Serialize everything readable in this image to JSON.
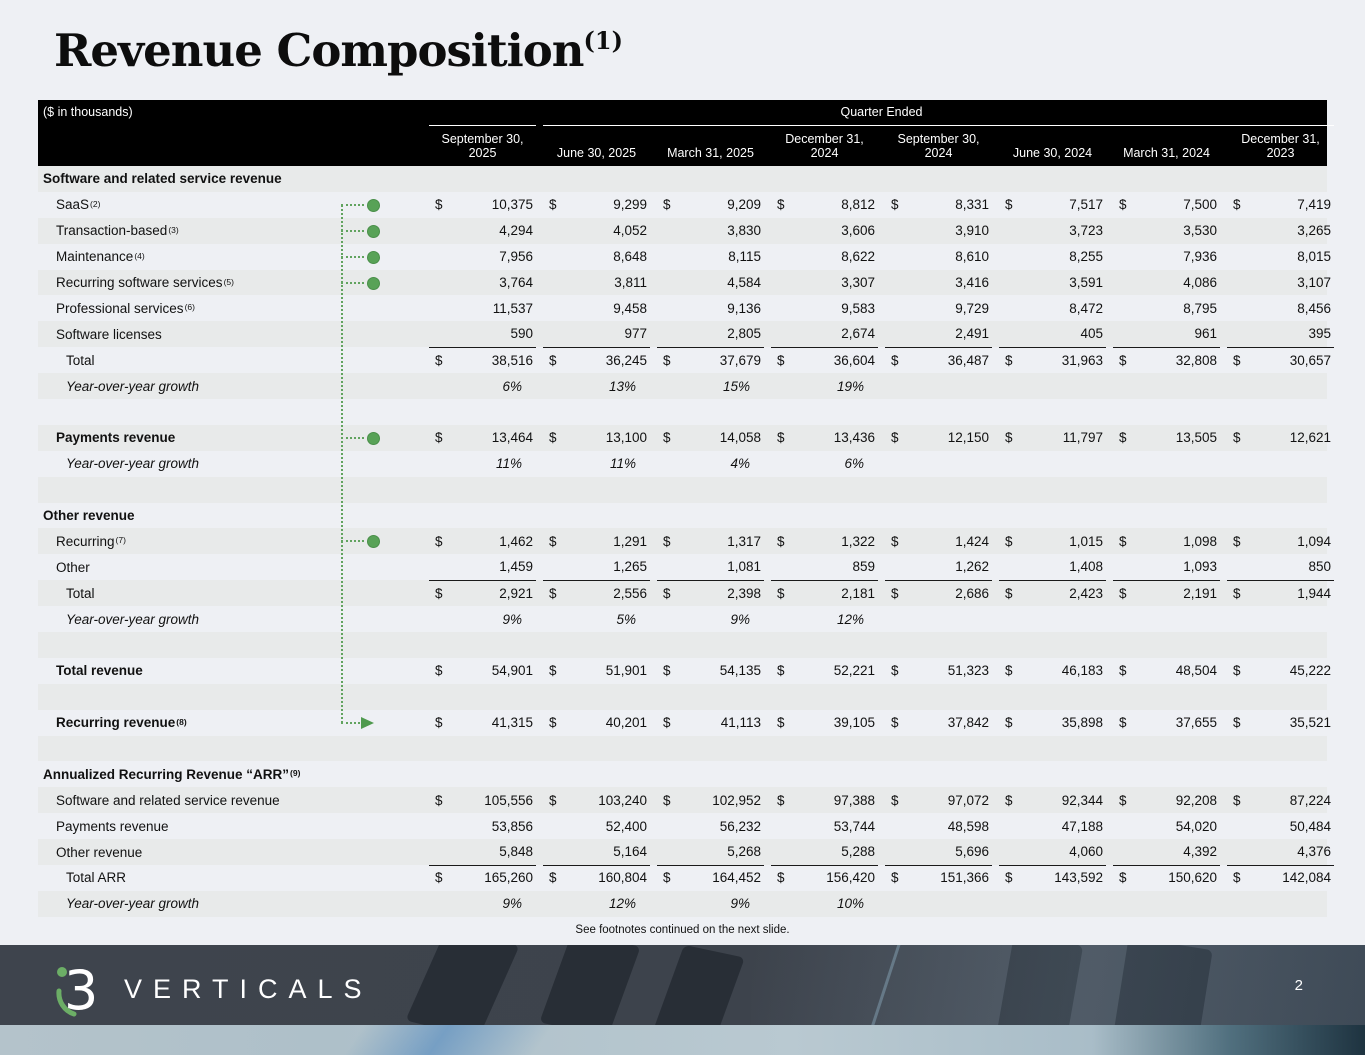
{
  "slide": {
    "title": "Revenue Composition",
    "title_sup": "(1)",
    "footnote": "See footnotes continued on the next slide.",
    "page_number": "2",
    "logo_wordmark": "VERTICALS",
    "logo_mark": "i3"
  },
  "colors": {
    "accent_green": "#58a257",
    "header_bg": "#000000",
    "row_stripe": "#e8eaea",
    "slide_bg": "#eef0f4",
    "footer_band": "#3e444d"
  },
  "table": {
    "units_note": "($ in thousands)",
    "quarter_ended_label": "Quarter Ended",
    "columns": [
      "September 30, 2025",
      "June 30, 2025",
      "March 31, 2025",
      "December 31, 2024",
      "September 30, 2024",
      "June 30, 2024",
      "March 31, 2024",
      "December 31, 2023"
    ],
    "rows": [
      {
        "t": "section",
        "label": "Software and related service revenue",
        "shade": true
      },
      {
        "t": "data",
        "label": "SaaS",
        "sup": "(2)",
        "dollar": true,
        "conn": "dot",
        "values": [
          "10,375",
          "9,299",
          "9,209",
          "8,812",
          "8,331",
          "7,517",
          "7,500",
          "7,419"
        ]
      },
      {
        "t": "data",
        "label": "Transaction-based",
        "sup": "(3)",
        "shade": true,
        "conn": "dot",
        "values": [
          "4,294",
          "4,052",
          "3,830",
          "3,606",
          "3,910",
          "3,723",
          "3,530",
          "3,265"
        ]
      },
      {
        "t": "data",
        "label": "Maintenance",
        "sup": "(4)",
        "conn": "dot",
        "values": [
          "7,956",
          "8,648",
          "8,115",
          "8,622",
          "8,610",
          "8,255",
          "7,936",
          "8,015"
        ]
      },
      {
        "t": "data",
        "label": "Recurring software services",
        "sup": "(5)",
        "shade": true,
        "conn": "dot",
        "values": [
          "3,764",
          "3,811",
          "4,584",
          "3,307",
          "3,416",
          "3,591",
          "4,086",
          "3,107"
        ]
      },
      {
        "t": "data",
        "label": "Professional services",
        "sup": "(6)",
        "values": [
          "11,537",
          "9,458",
          "9,136",
          "9,583",
          "9,729",
          "8,472",
          "8,795",
          "8,456"
        ]
      },
      {
        "t": "data",
        "label": "Software licenses",
        "shade": true,
        "ul": true,
        "values": [
          "590",
          "977",
          "2,805",
          "2,674",
          "2,491",
          "405",
          "961",
          "395"
        ]
      },
      {
        "t": "total",
        "label": "Total",
        "dollar": true,
        "values": [
          "38,516",
          "36,245",
          "37,679",
          "36,604",
          "36,487",
          "31,963",
          "32,808",
          "30,657"
        ]
      },
      {
        "t": "growth",
        "label": "Year-over-year growth",
        "shade": true,
        "values": [
          "6%",
          "13%",
          "15%",
          "19%",
          "",
          "",
          "",
          ""
        ]
      },
      {
        "t": "blank"
      },
      {
        "t": "data",
        "label": "Payments revenue",
        "bold": true,
        "shade": true,
        "dollar": true,
        "conn": "dot",
        "values": [
          "13,464",
          "13,100",
          "14,058",
          "13,436",
          "12,150",
          "11,797",
          "13,505",
          "12,621"
        ]
      },
      {
        "t": "growth",
        "label": "Year-over-year growth",
        "values": [
          "11%",
          "11%",
          "4%",
          "6%",
          "",
          "",
          "",
          ""
        ]
      },
      {
        "t": "blank",
        "shade": true
      },
      {
        "t": "section",
        "label": "Other revenue"
      },
      {
        "t": "data",
        "label": "Recurring",
        "sup": "(7)",
        "shade": true,
        "dollar": true,
        "conn": "dot",
        "values": [
          "1,462",
          "1,291",
          "1,317",
          "1,322",
          "1,424",
          "1,015",
          "1,098",
          "1,094"
        ]
      },
      {
        "t": "data",
        "label": "Other",
        "ul": true,
        "values": [
          "1,459",
          "1,265",
          "1,081",
          "859",
          "1,262",
          "1,408",
          "1,093",
          "850"
        ]
      },
      {
        "t": "total",
        "label": "Total",
        "shade": true,
        "dollar": true,
        "values": [
          "2,921",
          "2,556",
          "2,398",
          "2,181",
          "2,686",
          "2,423",
          "2,191",
          "1,944"
        ]
      },
      {
        "t": "growth",
        "label": "Year-over-year growth",
        "values": [
          "9%",
          "5%",
          "9%",
          "12%",
          "",
          "",
          "",
          ""
        ]
      },
      {
        "t": "blank",
        "shade": true
      },
      {
        "t": "data",
        "label": "Total revenue",
        "bold": true,
        "dollar": true,
        "values": [
          "54,901",
          "51,901",
          "54,135",
          "52,221",
          "51,323",
          "46,183",
          "48,504",
          "45,222"
        ]
      },
      {
        "t": "blank",
        "shade": true
      },
      {
        "t": "data",
        "label": "Recurring revenue",
        "sup": "(8)",
        "bold": true,
        "dollar": true,
        "conn": "arrow",
        "values": [
          "41,315",
          "40,201",
          "41,113",
          "39,105",
          "37,842",
          "35,898",
          "37,655",
          "35,521"
        ]
      },
      {
        "t": "blank",
        "shade": true
      },
      {
        "t": "section",
        "label": "Annualized Recurring Revenue “ARR”",
        "sup": "(9)"
      },
      {
        "t": "data",
        "label": "Software and related service revenue",
        "shade": true,
        "dollar": true,
        "values": [
          "105,556",
          "103,240",
          "102,952",
          "97,388",
          "97,072",
          "92,344",
          "92,208",
          "87,224"
        ]
      },
      {
        "t": "data",
        "label": "Payments revenue",
        "values": [
          "53,856",
          "52,400",
          "56,232",
          "53,744",
          "48,598",
          "47,188",
          "54,020",
          "50,484"
        ]
      },
      {
        "t": "data",
        "label": "Other revenue",
        "shade": true,
        "ul": true,
        "values": [
          "5,848",
          "5,164",
          "5,268",
          "5,288",
          "5,696",
          "4,060",
          "4,392",
          "4,376"
        ]
      },
      {
        "t": "total",
        "label": "Total ARR",
        "dollar": true,
        "values": [
          "165,260",
          "160,804",
          "164,452",
          "156,420",
          "151,366",
          "143,592",
          "150,620",
          "142,084"
        ]
      },
      {
        "t": "growth",
        "label": "Year-over-year growth",
        "shade": true,
        "values": [
          "9%",
          "12%",
          "9%",
          "10%",
          "",
          "",
          "",
          ""
        ]
      }
    ]
  }
}
